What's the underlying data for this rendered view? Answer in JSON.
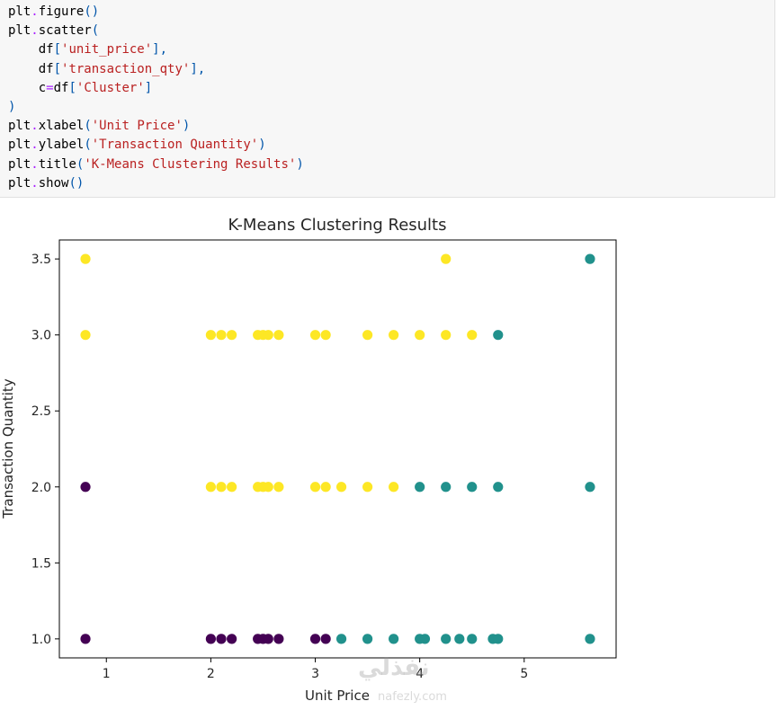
{
  "code": {
    "lines": [
      [
        {
          "t": "plt",
          "c": "k-name"
        },
        {
          "t": ".",
          "c": "k-op"
        },
        {
          "t": "figure",
          "c": "k-name"
        },
        {
          "t": "()",
          "c": "k-paren"
        }
      ],
      [
        {
          "t": "plt",
          "c": "k-name"
        },
        {
          "t": ".",
          "c": "k-op"
        },
        {
          "t": "scatter",
          "c": "k-name"
        },
        {
          "t": "(",
          "c": "k-paren"
        }
      ],
      [
        {
          "t": "    df",
          "c": "k-name"
        },
        {
          "t": "[",
          "c": "k-paren"
        },
        {
          "t": "'unit_price'",
          "c": "k-str"
        },
        {
          "t": "],",
          "c": "k-paren"
        }
      ],
      [
        {
          "t": "    df",
          "c": "k-name"
        },
        {
          "t": "[",
          "c": "k-paren"
        },
        {
          "t": "'transaction_qty'",
          "c": "k-str"
        },
        {
          "t": "],",
          "c": "k-paren"
        }
      ],
      [
        {
          "t": "    c",
          "c": "k-name"
        },
        {
          "t": "=",
          "c": "k-op"
        },
        {
          "t": "df",
          "c": "k-name"
        },
        {
          "t": "[",
          "c": "k-paren"
        },
        {
          "t": "'Cluster'",
          "c": "k-str"
        },
        {
          "t": "]",
          "c": "k-paren"
        }
      ],
      [
        {
          "t": ")",
          "c": "k-paren"
        }
      ],
      [
        {
          "t": "plt",
          "c": "k-name"
        },
        {
          "t": ".",
          "c": "k-op"
        },
        {
          "t": "xlabel",
          "c": "k-name"
        },
        {
          "t": "(",
          "c": "k-paren"
        },
        {
          "t": "'Unit Price'",
          "c": "k-str"
        },
        {
          "t": ")",
          "c": "k-paren"
        }
      ],
      [
        {
          "t": "plt",
          "c": "k-name"
        },
        {
          "t": ".",
          "c": "k-op"
        },
        {
          "t": "ylabel",
          "c": "k-name"
        },
        {
          "t": "(",
          "c": "k-paren"
        },
        {
          "t": "'Transaction Quantity'",
          "c": "k-str"
        },
        {
          "t": ")",
          "c": "k-paren"
        }
      ],
      [
        {
          "t": "plt",
          "c": "k-name"
        },
        {
          "t": ".",
          "c": "k-op"
        },
        {
          "t": "title",
          "c": "k-name"
        },
        {
          "t": "(",
          "c": "k-paren"
        },
        {
          "t": "'K-Means Clustering Results'",
          "c": "k-str"
        },
        {
          "t": ")",
          "c": "k-paren"
        }
      ],
      [
        {
          "t": "plt",
          "c": "k-name"
        },
        {
          "t": ".",
          "c": "k-op"
        },
        {
          "t": "show",
          "c": "k-name"
        },
        {
          "t": "()",
          "c": "k-paren"
        }
      ]
    ]
  },
  "watermark": {
    "logo": "نفذلي",
    "url": "nafezly.com"
  },
  "chart_data": {
    "type": "scatter",
    "title": "K-Means Clustering Results",
    "xlabel": "Unit Price",
    "ylabel": "Transaction Quantity",
    "xlim": [
      0.55,
      5.88
    ],
    "ylim": [
      0.875,
      3.625
    ],
    "xticks": [
      1,
      2,
      3,
      4,
      5
    ],
    "yticks": [
      1.0,
      1.5,
      2.0,
      2.5,
      3.0,
      3.5
    ],
    "ytick_labels": [
      "1.0",
      "1.5",
      "2.0",
      "2.5",
      "3.0",
      "3.5"
    ],
    "grid": false,
    "colors": {
      "0": "#440154",
      "1": "#21918c",
      "2": "#fde725"
    },
    "points": [
      {
        "x": 0.8,
        "y": 3.5,
        "cluster": 2
      },
      {
        "x": 4.25,
        "y": 3.5,
        "cluster": 2
      },
      {
        "x": 5.63,
        "y": 3.5,
        "cluster": 1
      },
      {
        "x": 0.8,
        "y": 3.0,
        "cluster": 2
      },
      {
        "x": 2.0,
        "y": 3.0,
        "cluster": 2
      },
      {
        "x": 2.1,
        "y": 3.0,
        "cluster": 2
      },
      {
        "x": 2.2,
        "y": 3.0,
        "cluster": 2
      },
      {
        "x": 2.45,
        "y": 3.0,
        "cluster": 2
      },
      {
        "x": 2.5,
        "y": 3.0,
        "cluster": 2
      },
      {
        "x": 2.55,
        "y": 3.0,
        "cluster": 2
      },
      {
        "x": 2.65,
        "y": 3.0,
        "cluster": 2
      },
      {
        "x": 3.0,
        "y": 3.0,
        "cluster": 2
      },
      {
        "x": 3.1,
        "y": 3.0,
        "cluster": 2
      },
      {
        "x": 3.5,
        "y": 3.0,
        "cluster": 2
      },
      {
        "x": 3.75,
        "y": 3.0,
        "cluster": 2
      },
      {
        "x": 4.0,
        "y": 3.0,
        "cluster": 2
      },
      {
        "x": 4.25,
        "y": 3.0,
        "cluster": 2
      },
      {
        "x": 4.5,
        "y": 3.0,
        "cluster": 2
      },
      {
        "x": 4.75,
        "y": 3.0,
        "cluster": 1
      },
      {
        "x": 0.8,
        "y": 2.0,
        "cluster": 0
      },
      {
        "x": 2.0,
        "y": 2.0,
        "cluster": 2
      },
      {
        "x": 2.1,
        "y": 2.0,
        "cluster": 2
      },
      {
        "x": 2.2,
        "y": 2.0,
        "cluster": 2
      },
      {
        "x": 2.45,
        "y": 2.0,
        "cluster": 2
      },
      {
        "x": 2.5,
        "y": 2.0,
        "cluster": 2
      },
      {
        "x": 2.55,
        "y": 2.0,
        "cluster": 2
      },
      {
        "x": 2.65,
        "y": 2.0,
        "cluster": 2
      },
      {
        "x": 3.0,
        "y": 2.0,
        "cluster": 2
      },
      {
        "x": 3.1,
        "y": 2.0,
        "cluster": 2
      },
      {
        "x": 3.25,
        "y": 2.0,
        "cluster": 2
      },
      {
        "x": 3.5,
        "y": 2.0,
        "cluster": 2
      },
      {
        "x": 3.75,
        "y": 2.0,
        "cluster": 2
      },
      {
        "x": 4.0,
        "y": 2.0,
        "cluster": 1
      },
      {
        "x": 4.25,
        "y": 2.0,
        "cluster": 1
      },
      {
        "x": 4.5,
        "y": 2.0,
        "cluster": 1
      },
      {
        "x": 4.75,
        "y": 2.0,
        "cluster": 1
      },
      {
        "x": 5.63,
        "y": 2.0,
        "cluster": 1
      },
      {
        "x": 0.8,
        "y": 1.0,
        "cluster": 0
      },
      {
        "x": 2.0,
        "y": 1.0,
        "cluster": 0
      },
      {
        "x": 2.1,
        "y": 1.0,
        "cluster": 0
      },
      {
        "x": 2.2,
        "y": 1.0,
        "cluster": 0
      },
      {
        "x": 2.45,
        "y": 1.0,
        "cluster": 0
      },
      {
        "x": 2.5,
        "y": 1.0,
        "cluster": 0
      },
      {
        "x": 2.55,
        "y": 1.0,
        "cluster": 0
      },
      {
        "x": 2.65,
        "y": 1.0,
        "cluster": 0
      },
      {
        "x": 3.0,
        "y": 1.0,
        "cluster": 0
      },
      {
        "x": 3.1,
        "y": 1.0,
        "cluster": 0
      },
      {
        "x": 3.25,
        "y": 1.0,
        "cluster": 1
      },
      {
        "x": 3.5,
        "y": 1.0,
        "cluster": 1
      },
      {
        "x": 3.75,
        "y": 1.0,
        "cluster": 1
      },
      {
        "x": 4.0,
        "y": 1.0,
        "cluster": 1
      },
      {
        "x": 4.05,
        "y": 1.0,
        "cluster": 1
      },
      {
        "x": 4.25,
        "y": 1.0,
        "cluster": 1
      },
      {
        "x": 4.38,
        "y": 1.0,
        "cluster": 1
      },
      {
        "x": 4.5,
        "y": 1.0,
        "cluster": 1
      },
      {
        "x": 4.7,
        "y": 1.0,
        "cluster": 1
      },
      {
        "x": 4.75,
        "y": 1.0,
        "cluster": 1
      },
      {
        "x": 5.63,
        "y": 1.0,
        "cluster": 1
      }
    ]
  }
}
